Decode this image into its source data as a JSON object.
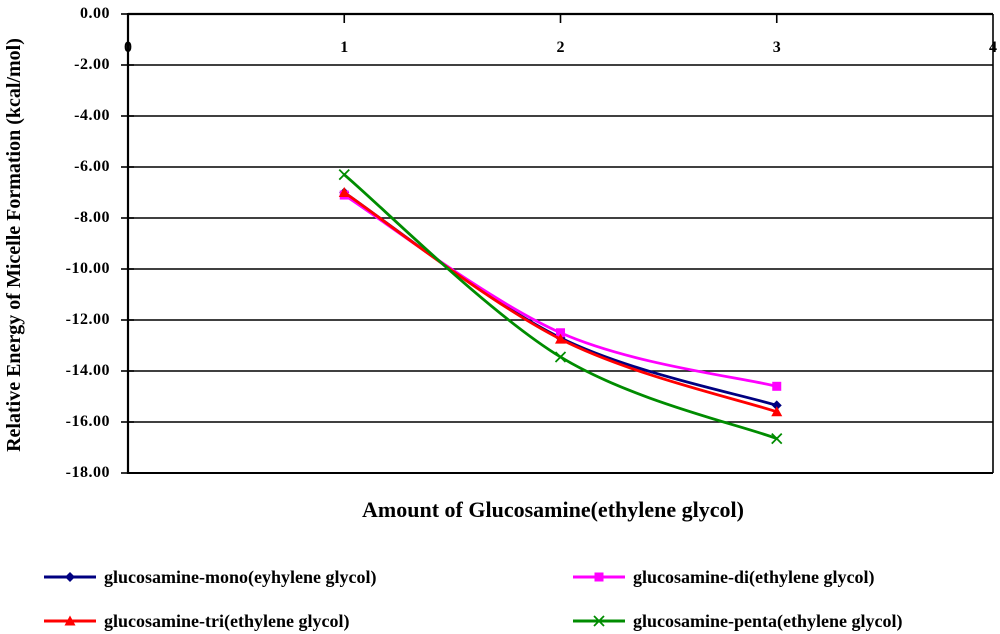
{
  "chart_data": {
    "type": "line",
    "line_style": "smoothed",
    "title": "",
    "xlabel": "Amount of Glucosamine(ethylene glycol)",
    "ylabel": "Relative Energy of Micelle Formation (kcal/mol)",
    "x": [
      1,
      2,
      3
    ],
    "xlim": [
      0,
      4
    ],
    "ylim": [
      -18,
      0
    ],
    "x_ticks": [
      "0",
      "1",
      "2",
      "3",
      "4"
    ],
    "y_ticks": [
      "0.00",
      "-2.00",
      "-4.00",
      "-6.00",
      "-8.00",
      "-10.00",
      "-12.00",
      "-14.00",
      "-16.00",
      "-18.00"
    ],
    "grid": "horizontal",
    "legend_position": "bottom-two-columns",
    "series": [
      {
        "name": "glucosamine-mono(eyhylene glycol)",
        "color": "#000080",
        "marker": "diamond",
        "values": [
          -7.0,
          -12.7,
          -15.35
        ]
      },
      {
        "name": "glucosamine-di(ethylene glycol)",
        "color": "#FF00FF",
        "marker": "square",
        "values": [
          -7.1,
          -12.5,
          -14.6
        ]
      },
      {
        "name": "glucosamine-tri(ethylene glycol)",
        "color": "#FF0000",
        "marker": "triangle",
        "values": [
          -7.0,
          -12.75,
          -15.6
        ]
      },
      {
        "name": "glucosamine-penta(ethylene glycol)",
        "color": "#008C00",
        "marker": "x",
        "values": [
          -6.3,
          -13.45,
          -16.65
        ]
      }
    ],
    "legend_columns": [
      [
        0,
        2
      ],
      [
        1,
        3
      ]
    ]
  }
}
